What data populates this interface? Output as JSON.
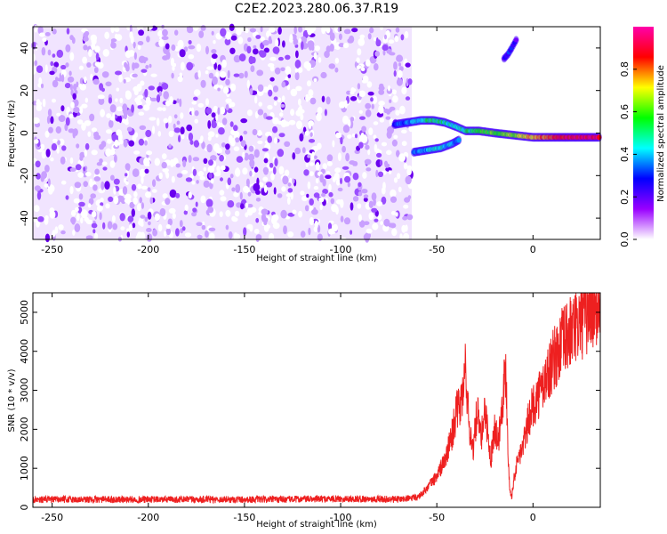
{
  "title": "C2E2.2023.280.06.37.R19",
  "chart_data": [
    {
      "type": "heatmap",
      "xlabel": "Height of straight line (km)",
      "ylabel": "Frequency (Hz)",
      "xlim": [
        -260,
        35
      ],
      "ylim": [
        -50,
        50
      ],
      "xticks": [
        -250,
        -200,
        -150,
        -100,
        -50,
        0
      ],
      "yticks": [
        -40,
        -20,
        0,
        20,
        40
      ],
      "grid": false,
      "colorbar": {
        "label": "Normalized spectral amplitude",
        "range": [
          0,
          1
        ],
        "ticks": [
          0.0,
          0.2,
          0.4,
          0.6,
          0.8
        ],
        "colors": [
          "#ffffff",
          "#9900ff",
          "#0000ff",
          "#00ffff",
          "#00ff00",
          "#ffff00",
          "#ff0000",
          "#ff00aa"
        ]
      },
      "noise_region": {
        "x": [
          -260,
          -63
        ],
        "freq": [
          -50,
          50
        ],
        "amplitude": 0.15
      },
      "signal_track": {
        "x": [
          -72,
          -65,
          -58,
          -52,
          -46,
          -40,
          -35,
          -28,
          -20,
          -10,
          0,
          10,
          20,
          35
        ],
        "freq": [
          4,
          5,
          6,
          6,
          5,
          3,
          1,
          1,
          0,
          -1,
          -2,
          -2,
          -2,
          -2
        ],
        "amplitude": [
          0.3,
          0.35,
          0.45,
          0.55,
          0.5,
          0.45,
          0.5,
          0.55,
          0.6,
          0.65,
          0.75,
          0.85,
          0.9,
          0.9
        ]
      },
      "lower_branch": {
        "x": [
          -62,
          -55,
          -48,
          -42,
          -38
        ],
        "freq": [
          -9,
          -8,
          -7,
          -5,
          -3
        ],
        "amplitude": [
          0.35,
          0.4,
          0.45,
          0.4,
          0.35
        ]
      },
      "sparse_feature": {
        "x": [
          -15,
          -13,
          -11,
          -8
        ],
        "freq": [
          35,
          37,
          40,
          45
        ],
        "amplitude": [
          0.25,
          0.3,
          0.3,
          0.2
        ]
      }
    },
    {
      "type": "line",
      "xlabel": "Height of straight line (km)",
      "ylabel": "SNR (10 * v/v)",
      "xlim": [
        -260,
        35
      ],
      "ylim": [
        0,
        5500
      ],
      "xticks": [
        -250,
        -200,
        -150,
        -100,
        -50,
        0
      ],
      "yticks": [
        0,
        1000,
        2000,
        3000,
        4000,
        5000
      ],
      "grid": false,
      "series": [
        {
          "color": "#ee2020",
          "x": [
            -260,
            -240,
            -220,
            -200,
            -180,
            -160,
            -140,
            -120,
            -100,
            -80,
            -70,
            -60,
            -55,
            -50,
            -45,
            -42,
            -40,
            -38,
            -36,
            -35,
            -34,
            -33,
            -31,
            -29,
            -27,
            -25,
            -22,
            -20,
            -18,
            -15,
            -14,
            -13,
            -12,
            -11,
            -10,
            -8,
            -5,
            -2,
            0,
            5,
            10,
            15,
            20,
            25,
            30,
            35
          ],
          "y": [
            200,
            200,
            200,
            200,
            200,
            200,
            200,
            210,
            220,
            210,
            200,
            250,
            500,
            800,
            1300,
            1900,
            2400,
            2600,
            3000,
            3800,
            2600,
            2000,
            1500,
            2500,
            1700,
            2600,
            1200,
            2100,
            1700,
            3200,
            3500,
            1500,
            400,
            300,
            700,
            1200,
            1600,
            2300,
            2600,
            3100,
            3700,
            4200,
            4500,
            4800,
            5050,
            5250
          ]
        }
      ]
    }
  ]
}
